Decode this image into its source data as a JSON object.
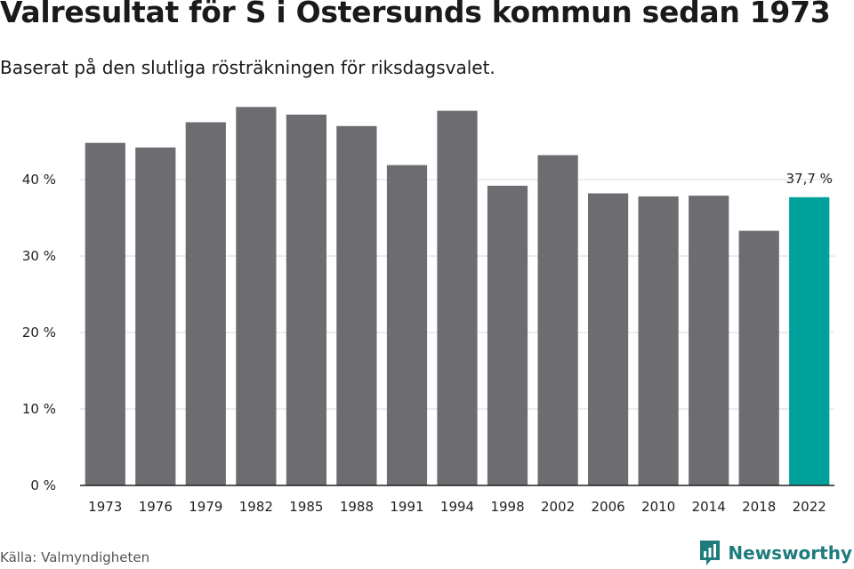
{
  "title": "Valresultat för S i Östersunds kommun sedan 1973",
  "subtitle": "Baserat på den slutliga rösträkningen för riksdagsvalet.",
  "source": "Källa: Valmyndigheten",
  "brand": {
    "name": "Newsworthy",
    "logo_icon": "newsworthy-logo-icon",
    "color": "#1f7b7c"
  },
  "chart_data": {
    "type": "bar",
    "categories": [
      "1973",
      "1976",
      "1979",
      "1982",
      "1985",
      "1988",
      "1991",
      "1994",
      "1998",
      "2002",
      "2006",
      "2010",
      "2014",
      "2018",
      "2022"
    ],
    "values": [
      44.8,
      44.2,
      47.5,
      49.5,
      48.5,
      47.0,
      41.9,
      49.0,
      39.2,
      43.2,
      38.2,
      37.8,
      37.9,
      33.3,
      37.7
    ],
    "ylim": [
      0,
      50
    ],
    "yticks": [
      0,
      10,
      20,
      30,
      40
    ],
    "ytick_labels": [
      "0 %",
      "10 %",
      "20 %",
      "30 %",
      "40 %"
    ],
    "highlight_index": 14,
    "highlight_label": "37,7 %",
    "bar_color": "#6d6c71",
    "highlight_color": "#00a19a",
    "grid": true,
    "legend": "none"
  }
}
